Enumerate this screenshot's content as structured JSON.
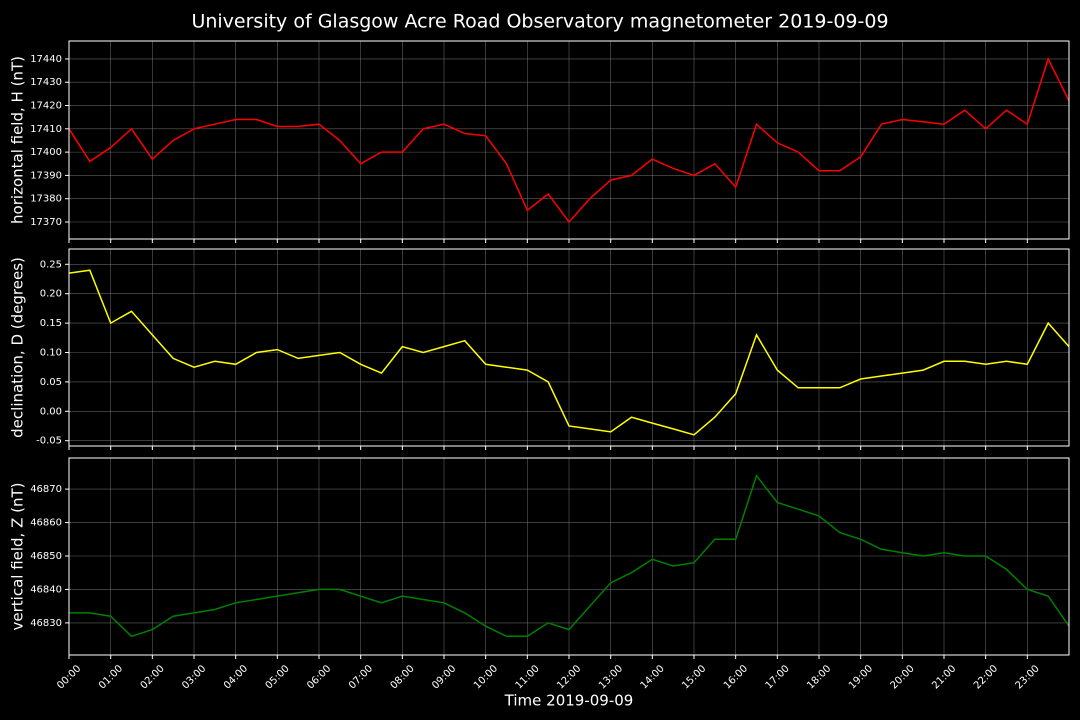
{
  "chart_data": [
    {
      "type": "line",
      "title": "University of Glasgow Acre Road Observatory magnetometer 2019-09-09",
      "ylabel": "horizontal field, H (nT)",
      "grid": true,
      "x": [
        0,
        0.5,
        1,
        1.5,
        2,
        2.5,
        3,
        3.5,
        4,
        4.5,
        5,
        5.5,
        6,
        6.5,
        7,
        7.5,
        8,
        8.5,
        9,
        9.5,
        10,
        10.5,
        11,
        11.5,
        12,
        12.5,
        13,
        13.5,
        14,
        14.5,
        15,
        15.5,
        16,
        16.5,
        17,
        17.5,
        18,
        18.5,
        19,
        19.5,
        20,
        20.5,
        21,
        21.5,
        22,
        22.5,
        23,
        23.5,
        24
      ],
      "series": [
        {
          "name": "H",
          "color": "#ff0000",
          "values": [
            17410,
            17396,
            17402,
            17410,
            17397,
            17405,
            17410,
            17412,
            17414,
            17414,
            17411,
            17411,
            17412,
            17405,
            17395,
            17400,
            17400,
            17410,
            17412,
            17408,
            17407,
            17395,
            17375,
            17382,
            17370,
            17380,
            17388,
            17390,
            17397,
            17393,
            17390,
            17395,
            17385,
            17412,
            17404,
            17400,
            17392,
            17392,
            17398,
            17412,
            17414,
            17413,
            17412,
            17418,
            17410,
            17418,
            17412,
            17440,
            17422
          ]
        }
      ],
      "xlim": [
        0,
        24
      ],
      "ylim": [
        17362.7,
        17447.7
      ],
      "yticks": [
        17370,
        17380,
        17390,
        17400,
        17410,
        17420,
        17430,
        17440
      ]
    },
    {
      "type": "line",
      "ylabel": "declination, D (degrees)",
      "grid": true,
      "x": [
        0,
        0.5,
        1,
        1.5,
        2,
        2.5,
        3,
        3.5,
        4,
        4.5,
        5,
        5.5,
        6,
        6.5,
        7,
        7.5,
        8,
        8.5,
        9,
        9.5,
        10,
        10.5,
        11,
        11.5,
        12,
        12.5,
        13,
        13.5,
        14,
        14.5,
        15,
        15.5,
        16,
        16.5,
        17,
        17.5,
        18,
        18.5,
        19,
        19.5,
        20,
        20.5,
        21,
        21.5,
        22,
        22.5,
        23,
        23.5,
        24
      ],
      "series": [
        {
          "name": "D",
          "color": "#ffff00",
          "values": [
            0.235,
            0.24,
            0.15,
            0.17,
            0.13,
            0.09,
            0.075,
            0.085,
            0.08,
            0.1,
            0.105,
            0.09,
            0.095,
            0.1,
            0.08,
            0.065,
            0.11,
            0.1,
            0.11,
            0.12,
            0.08,
            0.075,
            0.07,
            0.05,
            -0.025,
            -0.03,
            -0.035,
            -0.01,
            -0.02,
            -0.03,
            -0.04,
            -0.01,
            0.03,
            0.13,
            0.07,
            0.04,
            0.04,
            0.04,
            0.055,
            0.06,
            0.065,
            0.07,
            0.085,
            0.085,
            0.08,
            0.085,
            0.08,
            0.15,
            0.11
          ]
        }
      ],
      "xlim": [
        0,
        24
      ],
      "ylim": [
        -0.059,
        0.276
      ],
      "yticks": [
        {
          "value": -0.05,
          "label": "-0.05"
        },
        {
          "value": 0,
          "label": "0.00"
        },
        {
          "value": 0.05,
          "label": "0.05"
        },
        {
          "value": 0.1,
          "label": "0.10"
        },
        {
          "value": 0.15,
          "label": "0.15"
        },
        {
          "value": 0.2,
          "label": "0.20"
        },
        {
          "value": 0.25,
          "label": "0.25"
        }
      ]
    },
    {
      "type": "line",
      "ylabel": "vertical field, Z (nT)",
      "xlabel": "Time 2019-09-09",
      "grid": true,
      "x": [
        0,
        0.5,
        1,
        1.5,
        2,
        2.5,
        3,
        3.5,
        4,
        4.5,
        5,
        5.5,
        6,
        6.5,
        7,
        7.5,
        8,
        8.5,
        9,
        9.5,
        10,
        10.5,
        11,
        11.5,
        12,
        12.5,
        13,
        13.5,
        14,
        14.5,
        15,
        15.5,
        16,
        16.5,
        17,
        17.5,
        18,
        18.5,
        19,
        19.5,
        20,
        20.5,
        21,
        21.5,
        22,
        22.5,
        23,
        23.5,
        24
      ],
      "series": [
        {
          "name": "Z",
          "color": "#008000",
          "values": [
            46833,
            46833,
            46832,
            46826,
            46828,
            46832,
            46833,
            46834,
            46836,
            46837,
            46838,
            46839,
            46840,
            46840,
            46838,
            46836,
            46838,
            46837,
            46836,
            46833,
            46829,
            46826,
            46826,
            46830,
            46828,
            46835,
            46842,
            46845,
            46849,
            46847,
            46848,
            46855,
            46855,
            46874,
            46866,
            46864,
            46862,
            46857,
            46855,
            46852,
            46851,
            46850,
            46851,
            46850,
            46850,
            46846,
            46840,
            46838,
            46829
          ]
        }
      ],
      "xlim": [
        0,
        24
      ],
      "ylim": [
        46820.4,
        46879.3
      ],
      "yticks": [
        46830,
        46840,
        46850,
        46860,
        46870
      ],
      "xticks": [
        {
          "value": 0,
          "label": "00:00"
        },
        {
          "value": 1,
          "label": "01:00"
        },
        {
          "value": 2,
          "label": "02:00"
        },
        {
          "value": 3,
          "label": "03:00"
        },
        {
          "value": 4,
          "label": "04:00"
        },
        {
          "value": 5,
          "label": "05:00"
        },
        {
          "value": 6,
          "label": "06:00"
        },
        {
          "value": 7,
          "label": "07:00"
        },
        {
          "value": 8,
          "label": "08:00"
        },
        {
          "value": 9,
          "label": "09:00"
        },
        {
          "value": 10,
          "label": "10:00"
        },
        {
          "value": 11,
          "label": "11:00"
        },
        {
          "value": 12,
          "label": "12:00"
        },
        {
          "value": 13,
          "label": "13:00"
        },
        {
          "value": 14,
          "label": "14:00"
        },
        {
          "value": 15,
          "label": "15:00"
        },
        {
          "value": 16,
          "label": "16:00"
        },
        {
          "value": 17,
          "label": "17:00"
        },
        {
          "value": 18,
          "label": "18:00"
        },
        {
          "value": 19,
          "label": "19:00"
        },
        {
          "value": 20,
          "label": "20:00"
        },
        {
          "value": 21,
          "label": "21:00"
        },
        {
          "value": 22,
          "label": "22:00"
        },
        {
          "value": 23,
          "label": "23:00"
        }
      ]
    }
  ]
}
